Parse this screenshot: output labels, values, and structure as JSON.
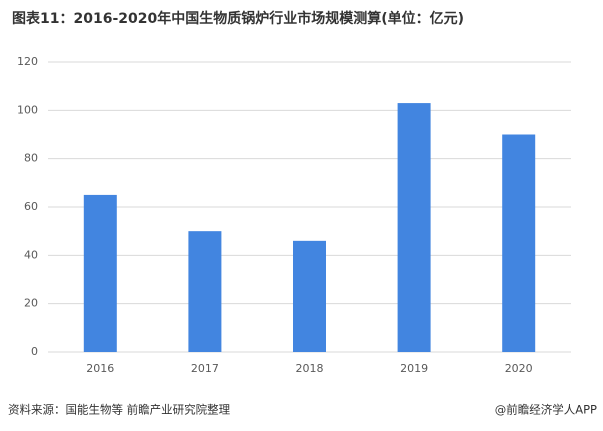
{
  "chart_data": {
    "type": "bar",
    "title": "图表11：2016-2020年中国生物质锅炉行业市场规模测算(单位：亿元)",
    "categories": [
      "2016",
      "2017",
      "2018",
      "2019",
      "2020"
    ],
    "values": [
      65,
      50,
      46,
      103,
      90
    ],
    "color": "#4285e0",
    "ylim": [
      0,
      120
    ],
    "yticks": [
      0,
      20,
      40,
      60,
      80,
      100,
      120
    ],
    "grid": true,
    "source": "资料来源：国能生物等 前瞻产业研究院整理",
    "credit": "@前瞻经济学人APP"
  }
}
